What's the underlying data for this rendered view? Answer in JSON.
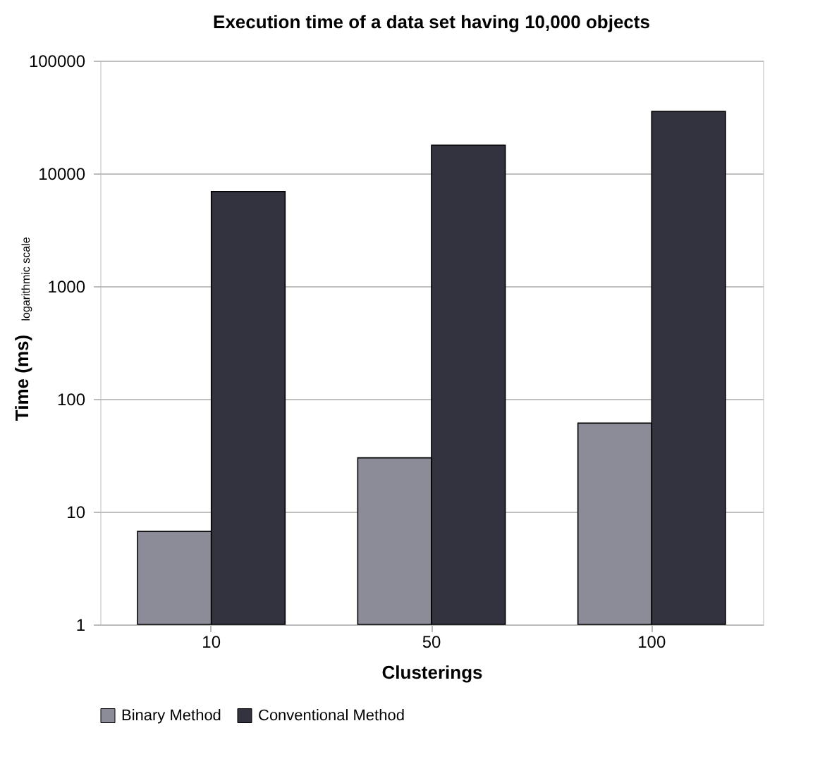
{
  "chart_data": {
    "type": "bar",
    "title": "Execution time of a data set having 10,000 objects",
    "xlabel": "Clusterings",
    "ylabel": "Time (ms) $_{logarithmic scale}$",
    "categories": [
      "10",
      "50",
      "100"
    ],
    "series": [
      {
        "name": "Binary Method",
        "color": "#8c8c99",
        "values": [
          6.7,
          30,
          61
        ]
      },
      {
        "name": "Conventional Method",
        "color": "#33333f",
        "values": [
          6900,
          17800,
          35500
        ]
      }
    ],
    "log": true,
    "ylim": [
      1,
      100000
    ],
    "yticks": [
      1,
      10,
      100,
      1000,
      10000,
      100000
    ],
    "grid": "y",
    "legend": "bottom"
  }
}
